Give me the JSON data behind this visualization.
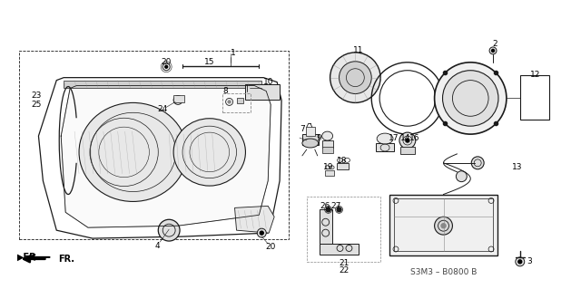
{
  "background_color": "#ffffff",
  "fig_width": 6.4,
  "fig_height": 3.19,
  "dpi": 100,
  "diagram_code": "S3M3 – B0800 B",
  "line_color": "#1a1a1a",
  "gray_color": "#888888",
  "light_gray": "#cccccc"
}
